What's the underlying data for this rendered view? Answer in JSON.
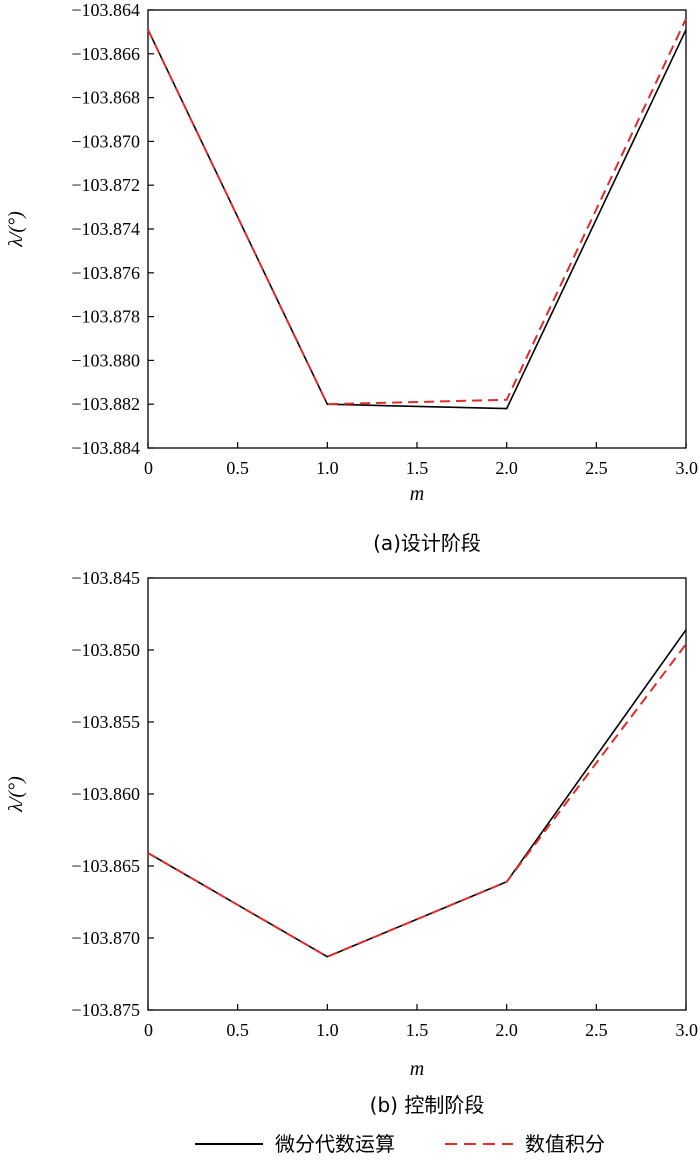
{
  "chart_data": [
    {
      "type": "line",
      "caption": "(a)设计阶段",
      "xlabel": "m",
      "ylabel": "λ/(°)",
      "xlim": [
        0,
        3.0
      ],
      "ylim": [
        -103.884,
        -103.864
      ],
      "x_ticks": [
        "0",
        "0.5",
        "1.0",
        "1.5",
        "2.0",
        "2.5",
        "3.0"
      ],
      "y_ticks": [
        "-103.864",
        "-103.866",
        "-103.868",
        "-103.870",
        "-103.872",
        "-103.874",
        "-103.876",
        "-103.878",
        "-103.880",
        "-103.882",
        "-103.884"
      ],
      "grid": false,
      "x": [
        0,
        1.0,
        2.0,
        3.0
      ],
      "series": [
        {
          "name": "微分代数运算",
          "color": "#000000",
          "style": "solid",
          "values": [
            -103.8649,
            -103.882,
            -103.8822,
            -103.8649
          ]
        },
        {
          "name": "数值积分",
          "color": "#e32b2b",
          "style": "dashed",
          "values": [
            -103.8649,
            -103.882,
            -103.8818,
            -103.8644
          ]
        }
      ]
    },
    {
      "type": "line",
      "caption": "(b) 控制阶段",
      "xlabel": "m",
      "ylabel": "λ/(°)",
      "xlim": [
        0,
        3.0
      ],
      "ylim": [
        -103.875,
        -103.845
      ],
      "x_ticks": [
        "0",
        "0.5",
        "1.0",
        "1.5",
        "2.0",
        "2.5",
        "3.0"
      ],
      "y_ticks": [
        "-103.845",
        "-103.850",
        "-103.855",
        "-103.860",
        "-103.865",
        "-103.870",
        "-103.875"
      ],
      "grid": false,
      "x": [
        0,
        1.0,
        2.0,
        3.0
      ],
      "series": [
        {
          "name": "微分代数运算",
          "color": "#000000",
          "style": "solid",
          "values": [
            -103.8641,
            -103.8713,
            -103.8661,
            -103.8486
          ]
        },
        {
          "name": "数值积分",
          "color": "#e32b2b",
          "style": "dashed",
          "values": [
            -103.8641,
            -103.8713,
            -103.8661,
            -103.8496
          ]
        }
      ]
    }
  ],
  "legend": {
    "placement": "bottom",
    "items": [
      {
        "label": "微分代数运算",
        "color": "#000000",
        "style": "solid"
      },
      {
        "label": "数值积分",
        "color": "#e32b2b",
        "style": "dashed"
      }
    ]
  }
}
